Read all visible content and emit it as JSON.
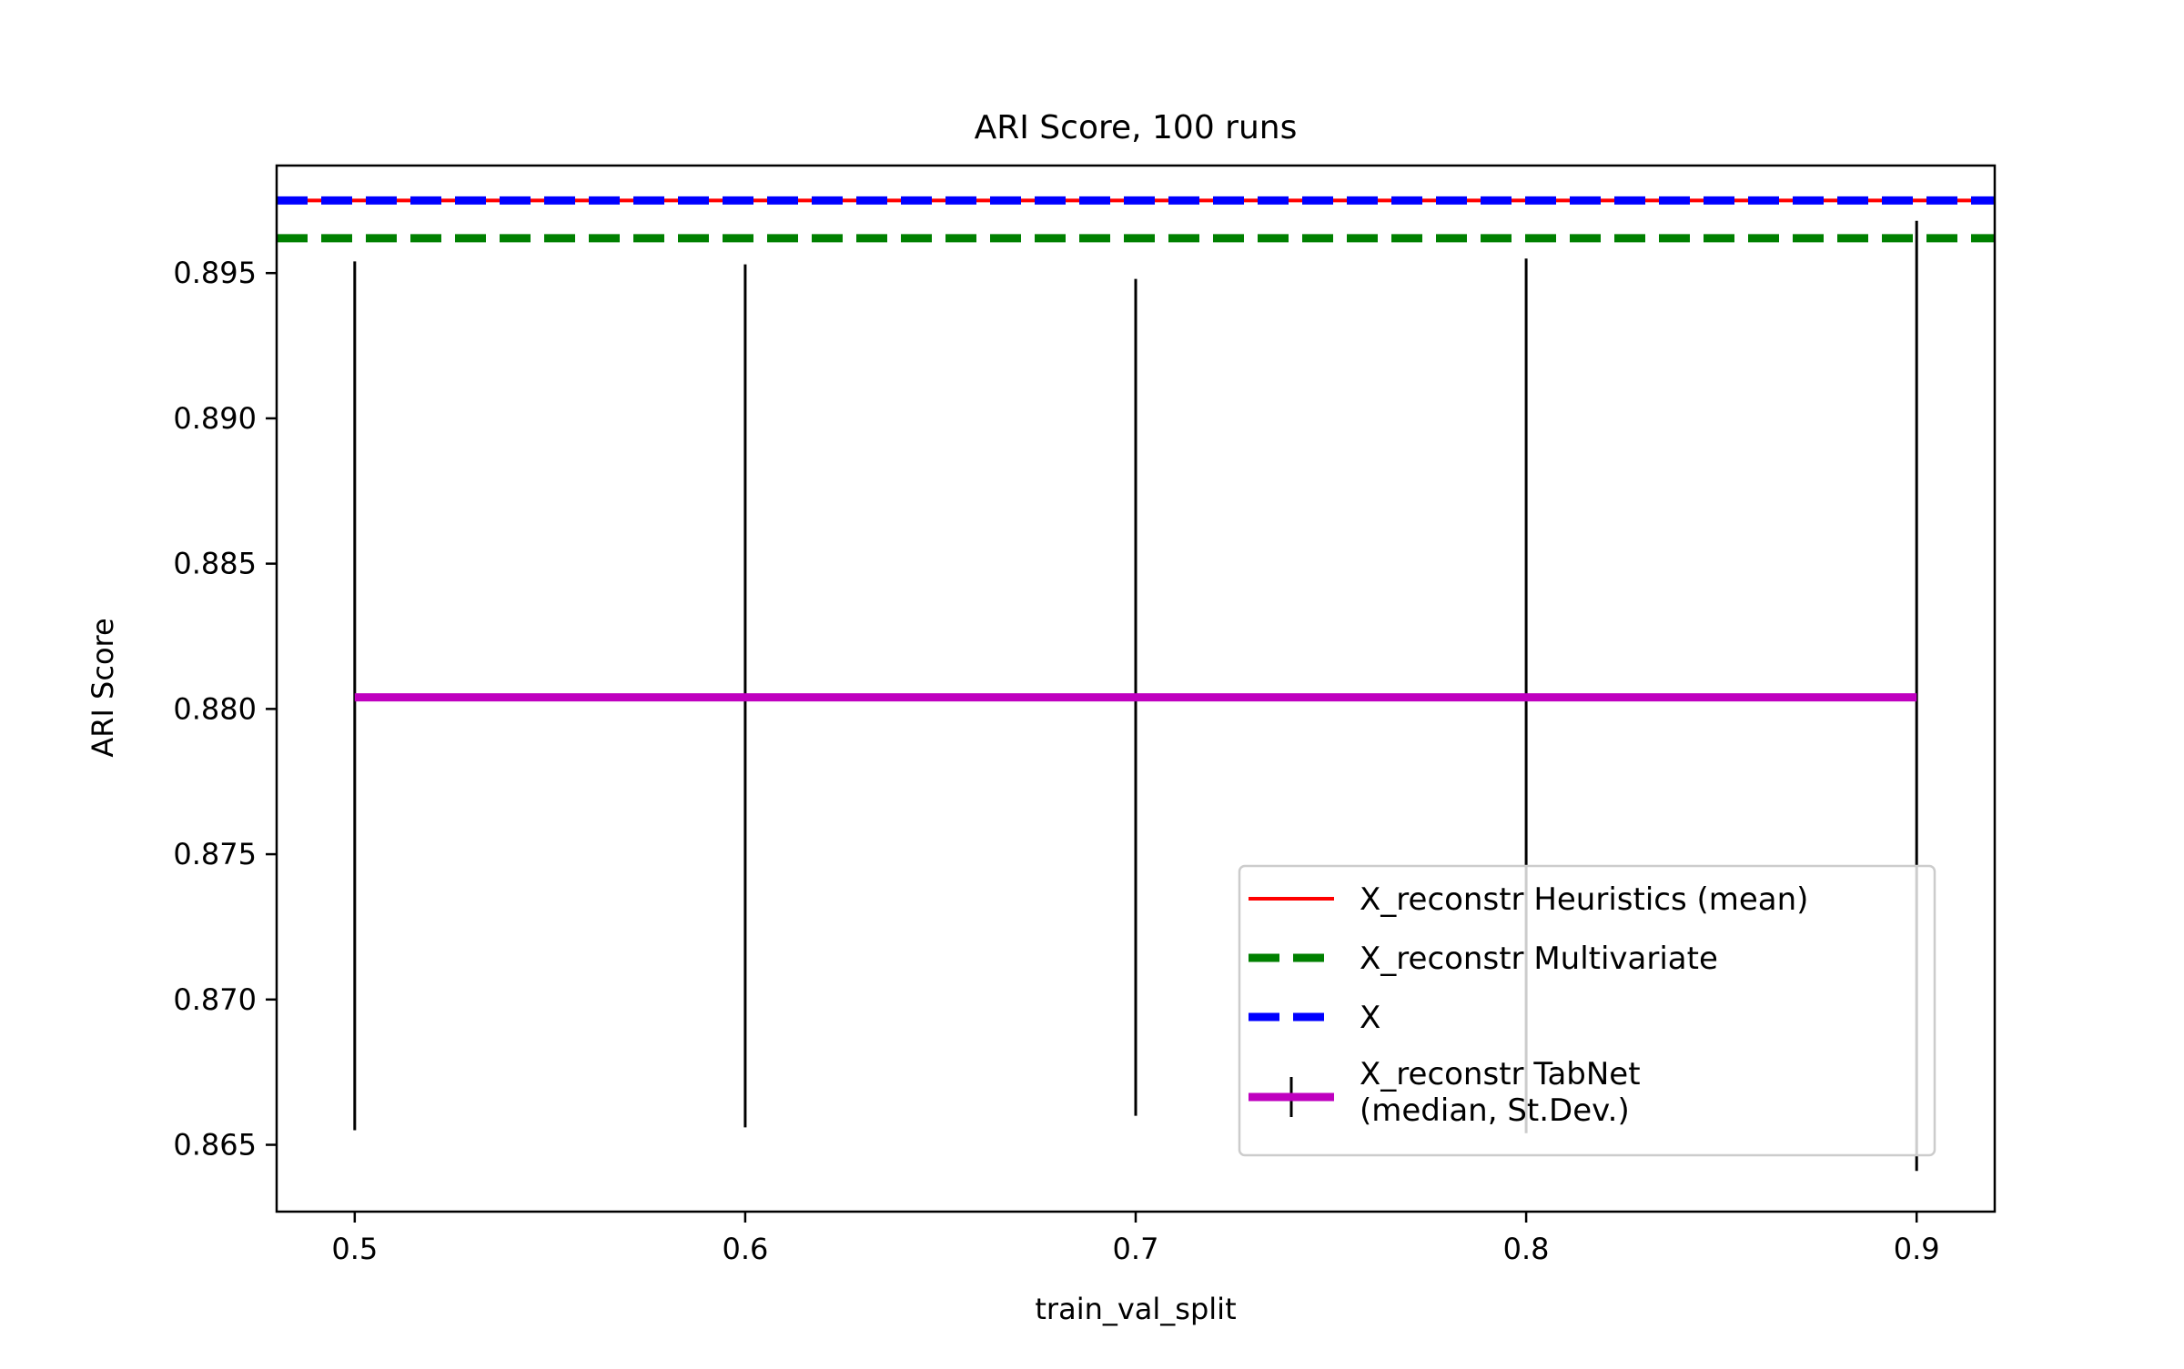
{
  "chart_data": {
    "type": "line",
    "title": "ARI Score, 100 runs",
    "xlabel": "train_val_split",
    "ylabel": "ARI Score",
    "xlim": [
      0.48,
      0.92
    ],
    "ylim": [
      0.8627,
      0.8987
    ],
    "x_ticks": [
      0.5,
      0.6,
      0.7,
      0.8,
      0.9
    ],
    "x_tick_labels": [
      "0.5",
      "0.6",
      "0.7",
      "0.8",
      "0.9"
    ],
    "y_ticks": [
      0.865,
      0.87,
      0.875,
      0.88,
      0.885,
      0.89,
      0.895
    ],
    "y_tick_labels": [
      "0.865",
      "0.870",
      "0.875",
      "0.880",
      "0.885",
      "0.890",
      "0.895"
    ],
    "grid": false,
    "legend_position": "lower-right",
    "baselines": [
      {
        "name": "X_reconstr Heuristics (mean)",
        "value": 0.8975,
        "color": "#ff0000",
        "style": "solid"
      },
      {
        "name": "X_reconstr Multivariate",
        "value": 0.8962,
        "color": "#008000",
        "style": "dashed"
      },
      {
        "name": "X",
        "value": 0.8975,
        "color": "#0000ff",
        "style": "dashed"
      }
    ],
    "series": [
      {
        "name": "X_reconstr TabNet\n(median, St.Dev.)",
        "color": "#bf00bf",
        "x": [
          0.5,
          0.6,
          0.7,
          0.8,
          0.9
        ],
        "y": [
          0.8804,
          0.8804,
          0.8804,
          0.8804,
          0.8804
        ],
        "err_low": [
          0.8655,
          0.8656,
          0.866,
          0.8654,
          0.8641
        ],
        "err_high": [
          0.8954,
          0.8953,
          0.8948,
          0.8955,
          0.8968
        ]
      }
    ]
  }
}
